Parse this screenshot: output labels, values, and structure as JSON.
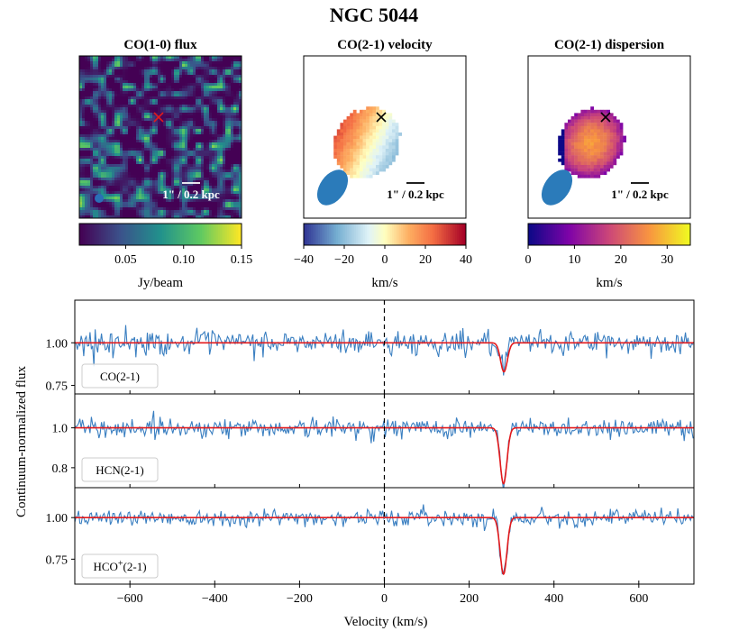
{
  "figure_title": "NGC 5044",
  "chart_data": [
    {
      "type": "heatmap",
      "title": "CO(1-0) flux",
      "colormap": "viridis",
      "colorbar": {
        "ticks": [
          "0.05",
          "0.10",
          "0.15"
        ],
        "tick_values": [
          0.05,
          0.1,
          0.15
        ],
        "range": [
          0.01,
          0.15
        ],
        "label": "Jy/beam"
      },
      "marker_color": "#e31a1c",
      "scalebar_label": "1\" / 0.2 kpc"
    },
    {
      "type": "heatmap",
      "title": "CO(2-1) velocity",
      "colormap": "RdYlBu_r",
      "colorbar": {
        "ticks": [
          "−40",
          "−20",
          "0",
          "20",
          "40"
        ],
        "tick_values": [
          -40,
          -20,
          0,
          20,
          40
        ],
        "range": [
          -40,
          40
        ],
        "label": "km/s"
      },
      "marker_color": "#000000",
      "scalebar_label": "1\" / 0.2 kpc"
    },
    {
      "type": "heatmap",
      "title": "CO(2-1) dispersion",
      "colormap": "plasma",
      "colorbar": {
        "ticks": [
          "0",
          "10",
          "20",
          "30"
        ],
        "tick_values": [
          0,
          10,
          20,
          30
        ],
        "range": [
          0,
          35
        ],
        "label": "km/s"
      },
      "marker_color": "#000000",
      "scalebar_label": "1\" / 0.2 kpc"
    },
    {
      "type": "line",
      "xlabel": "Velocity (km/s)",
      "ylabel": "Continuum-normalized flux",
      "xlim": [
        -730,
        730
      ],
      "x_ticks": [
        "−600",
        "−400",
        "−200",
        "0",
        "200",
        "400",
        "600"
      ],
      "x_tick_values": [
        -600,
        -400,
        -200,
        0,
        200,
        400,
        600
      ],
      "vertical_dashed_line_x": 0,
      "spectrum_color": "#3a7fc1",
      "fit_color": "#e31a1c",
      "panels": [
        {
          "legend": "CO(2-1)",
          "legend_sup": "",
          "legend_rest": "",
          "ylim": [
            0.7,
            1.25
          ],
          "y_ticks": [
            "0.75",
            "1.00"
          ],
          "y_tick_values": [
            0.75,
            1.0
          ],
          "noise": 0.065,
          "line_center": 282,
          "line_depth": 0.17,
          "line_sigma": 8
        },
        {
          "legend": "HCN(2-1)",
          "legend_sup": "",
          "legend_rest": "",
          "ylim": [
            0.7,
            1.17
          ],
          "y_ticks": [
            "0.8",
            "1.0"
          ],
          "y_tick_values": [
            0.8,
            1.0
          ],
          "noise": 0.045,
          "line_center": 281,
          "line_depth": 0.28,
          "line_sigma": 8
        },
        {
          "legend": "HCO",
          "legend_sup": "+",
          "legend_rest": "(2-1)",
          "ylim": [
            0.6,
            1.18
          ],
          "y_ticks": [
            "0.75",
            "1.00"
          ],
          "y_tick_values": [
            0.75,
            1.0
          ],
          "noise": 0.045,
          "line_center": 281,
          "line_depth": 0.34,
          "line_sigma": 8
        }
      ]
    }
  ]
}
